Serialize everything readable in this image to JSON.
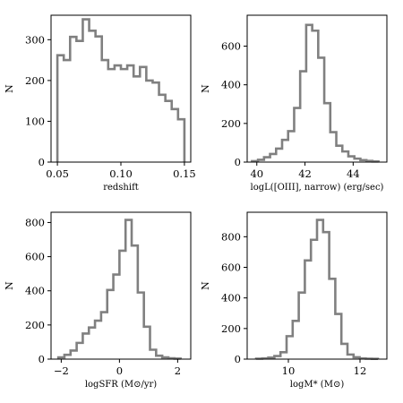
{
  "hist_color": "#808080",
  "chart_data": [
    {
      "type": "histogram",
      "xlabel": "redshift",
      "ylabel": "N",
      "xlim": [
        0.045,
        0.155
      ],
      "ylim": [
        0,
        360
      ],
      "xticks": [
        "0.05",
        "0.10",
        "0.15"
      ],
      "xtick_values": [
        0.05,
        0.1,
        0.15
      ],
      "yticks": [
        "0",
        "100",
        "200",
        "300"
      ],
      "ytick_values": [
        0,
        100,
        200,
        300
      ],
      "bin_edges": [
        0.05,
        0.055,
        0.06,
        0.065,
        0.07,
        0.075,
        0.08,
        0.085,
        0.09,
        0.095,
        0.1,
        0.105,
        0.11,
        0.115,
        0.12,
        0.125,
        0.13,
        0.135,
        0.14,
        0.145,
        0.15
      ],
      "values": [
        262,
        250,
        307,
        297,
        350,
        322,
        308,
        250,
        228,
        237,
        228,
        237,
        210,
        233,
        200,
        195,
        165,
        150,
        130,
        105
      ]
    },
    {
      "type": "histogram",
      "xlabel": "logL([OIII], narrow) (erg/sec)",
      "ylabel": "N",
      "xlim": [
        39.6,
        45.4
      ],
      "ylim": [
        0,
        760
      ],
      "xticks": [
        "40",
        "42",
        "44"
      ],
      "xtick_values": [
        40,
        42,
        44
      ],
      "yticks": [
        "0",
        "200",
        "400",
        "600"
      ],
      "ytick_values": [
        0,
        200,
        400,
        600
      ],
      "bin_edges": [
        39.8,
        40.05,
        40.3,
        40.55,
        40.8,
        41.05,
        41.3,
        41.55,
        41.8,
        42.05,
        42.3,
        42.55,
        42.8,
        43.05,
        43.3,
        43.55,
        43.8,
        44.05,
        44.3,
        44.55,
        44.8,
        45.05
      ],
      "values": [
        5,
        12,
        25,
        42,
        70,
        115,
        160,
        280,
        470,
        710,
        680,
        540,
        305,
        155,
        85,
        55,
        30,
        18,
        10,
        6,
        3
      ]
    },
    {
      "type": "histogram",
      "xlabel": "logSFR (M⊙/yr)",
      "ylabel": "N",
      "xlim": [
        -2.35,
        2.45
      ],
      "ylim": [
        0,
        860
      ],
      "xticks": [
        "−2",
        "0",
        "2"
      ],
      "xtick_values": [
        -2,
        0,
        2
      ],
      "yticks": [
        "0",
        "200",
        "400",
        "600",
        "800"
      ],
      "ytick_values": [
        0,
        200,
        400,
        600,
        800
      ],
      "bin_edges": [
        -2.1,
        -1.89,
        -1.68,
        -1.47,
        -1.26,
        -1.05,
        -0.84,
        -0.63,
        -0.42,
        -0.21,
        0.0,
        0.21,
        0.42,
        0.63,
        0.84,
        1.05,
        1.26,
        1.47,
        1.68,
        1.89,
        2.1
      ],
      "values": [
        10,
        25,
        50,
        95,
        150,
        185,
        225,
        275,
        405,
        495,
        635,
        815,
        665,
        390,
        190,
        55,
        20,
        10,
        5,
        3
      ]
    },
    {
      "type": "histogram",
      "xlabel": "logM* (M⊙)",
      "ylabel": "N",
      "xlim": [
        8.85,
        12.75
      ],
      "ylim": [
        0,
        960
      ],
      "xticks": [
        "10",
        "12"
      ],
      "xtick_values": [
        10,
        12
      ],
      "yticks": [
        "0",
        "200",
        "400",
        "600",
        "800"
      ],
      "ytick_values": [
        0,
        200,
        400,
        600,
        800
      ],
      "bin_edges": [
        9.1,
        9.27,
        9.44,
        9.61,
        9.78,
        9.95,
        10.12,
        10.29,
        10.46,
        10.63,
        10.8,
        10.97,
        11.14,
        11.31,
        11.48,
        11.65,
        11.82,
        11.99,
        12.16,
        12.33,
        12.5
      ],
      "values": [
        3,
        5,
        10,
        20,
        45,
        150,
        250,
        435,
        645,
        780,
        910,
        830,
        525,
        295,
        100,
        30,
        12,
        5,
        3,
        2
      ]
    }
  ]
}
